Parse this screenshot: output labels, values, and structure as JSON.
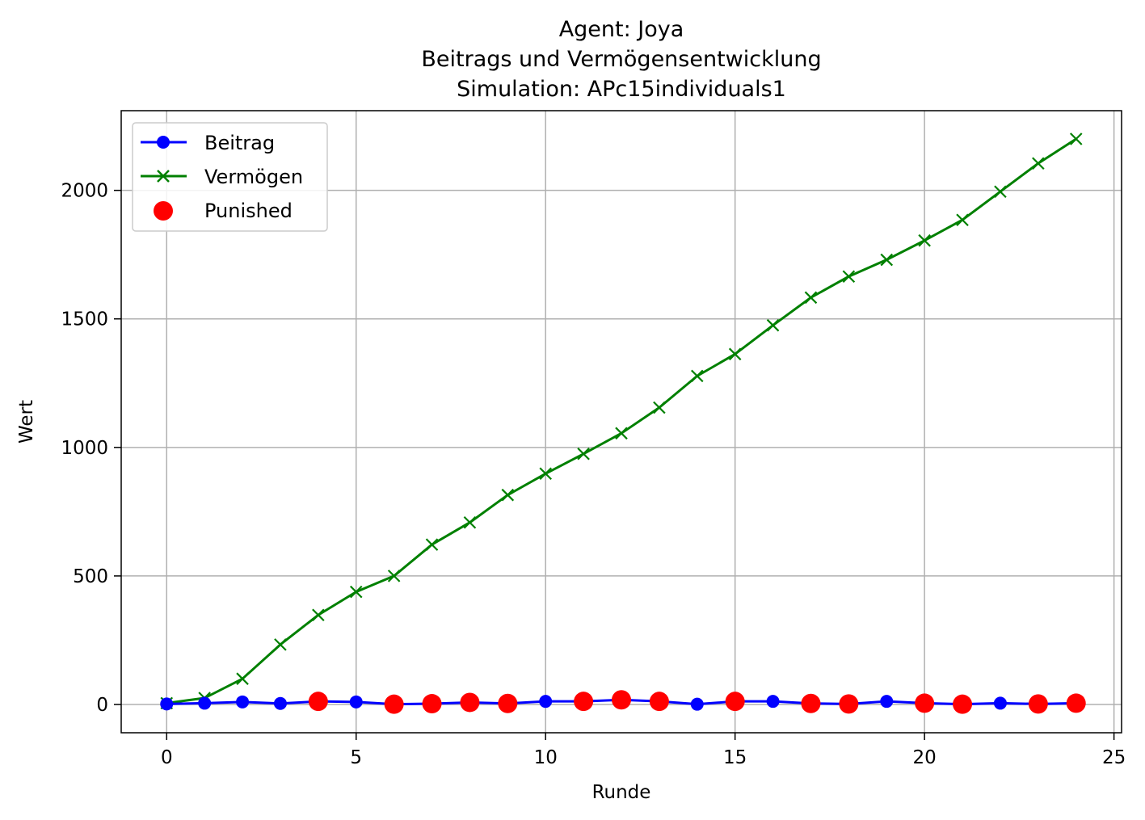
{
  "chart_data": {
    "type": "line",
    "title_lines": [
      "Agent: Joya",
      "Beitrags und Vermögensentwicklung",
      "Simulation: APc15individuals1"
    ],
    "xlabel": "Runde",
    "ylabel": "Wert",
    "xlim": [
      -1.2,
      25.2
    ],
    "ylim": [
      -110,
      2310
    ],
    "xticks": [
      0,
      5,
      10,
      15,
      20,
      25
    ],
    "yticks": [
      0,
      500,
      1000,
      1500,
      2000
    ],
    "grid": true,
    "legend_position": "upper-left",
    "x": [
      0,
      1,
      2,
      3,
      4,
      5,
      6,
      7,
      8,
      9,
      10,
      11,
      12,
      13,
      14,
      15,
      16,
      17,
      18,
      19,
      20,
      21,
      22,
      23,
      24
    ],
    "series": [
      {
        "name": "Beitrag",
        "color": "#0000ff",
        "marker": "circle",
        "values": [
          2,
          5,
          10,
          4,
          12,
          10,
          1,
          3,
          8,
          4,
          12,
          12,
          18,
          12,
          1,
          12,
          12,
          4,
          2,
          12,
          5,
          1,
          5,
          2,
          5
        ]
      },
      {
        "name": "Vermögen",
        "color": "#008000",
        "marker": "x",
        "values": [
          5,
          25,
          100,
          233,
          348,
          438,
          500,
          622,
          708,
          815,
          898,
          975,
          1055,
          1155,
          1278,
          1363,
          1475,
          1583,
          1665,
          1730,
          1805,
          1885,
          1995,
          2105,
          2200
        ]
      },
      {
        "name": "Punished",
        "color": "#ff0000",
        "marker": "dot",
        "x": [
          4,
          6,
          7,
          8,
          9,
          11,
          12,
          13,
          15,
          17,
          18,
          20,
          21,
          23,
          24
        ],
        "values": [
          12,
          1,
          3,
          8,
          4,
          12,
          18,
          12,
          12,
          4,
          2,
          5,
          1,
          2,
          5
        ]
      }
    ]
  }
}
